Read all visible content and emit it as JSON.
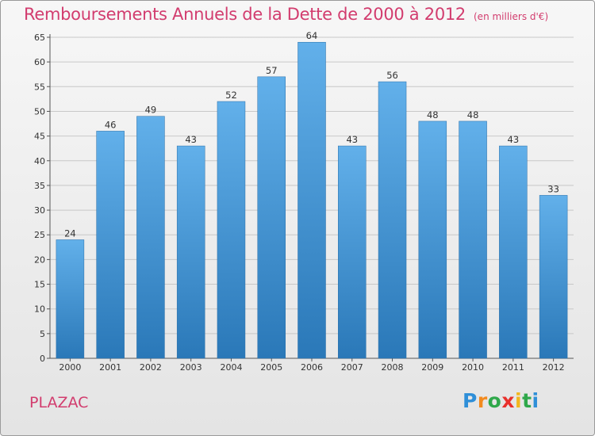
{
  "title": "Remboursements Annuels de la Dette de 2000 à 2012",
  "unit": "(en milliers d'€)",
  "commune": "PLAZAC",
  "logo": {
    "letters": [
      "P",
      "r",
      "o",
      "x",
      "i",
      "t",
      "i"
    ],
    "colors": [
      "#2f8fd8",
      "#f28a1e",
      "#2fa84a",
      "#e8312c",
      "#f2b61e",
      "#2fa84a",
      "#2f8fd8"
    ]
  },
  "colors": {
    "title": "#d23c6e",
    "bar_light": "#62b0ea",
    "bar_dark": "#2a78b8"
  },
  "chart_data": {
    "type": "bar",
    "categories": [
      "2000",
      "2001",
      "2002",
      "2003",
      "2004",
      "2005",
      "2006",
      "2007",
      "2008",
      "2009",
      "2010",
      "2011",
      "2012"
    ],
    "values": [
      24,
      46,
      49,
      43,
      52,
      57,
      64,
      43,
      56,
      48,
      48,
      43,
      33
    ],
    "ylim": [
      0,
      65
    ],
    "yticks": [
      0,
      5,
      10,
      15,
      20,
      25,
      30,
      35,
      40,
      45,
      50,
      55,
      60,
      65
    ],
    "grid": true,
    "xlabel": "",
    "ylabel": ""
  }
}
